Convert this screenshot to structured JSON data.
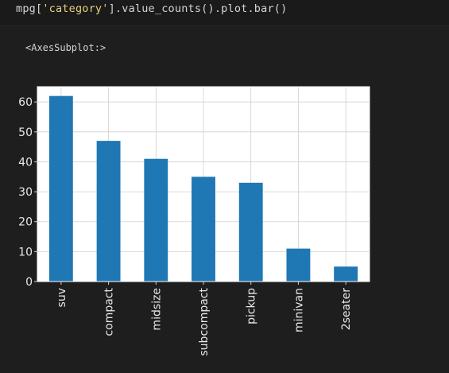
{
  "code_cell": {
    "prefix": "mpg[",
    "string_literal": "'category'",
    "suffix": "].value_counts().plot.bar()"
  },
  "output": {
    "repr_text": "<AxesSubplot:>"
  },
  "colors": {
    "background": "#1e1e1e",
    "bar": "#1f77b4",
    "plot_face": "#ffffff",
    "grid": "#d0d0d0",
    "string_literal": "#e6d37a"
  },
  "chart_data": {
    "type": "bar",
    "categories": [
      "suv",
      "compact",
      "midsize",
      "subcompact",
      "pickup",
      "minivan",
      "2seater"
    ],
    "values": [
      62,
      47,
      41,
      35,
      33,
      11,
      5
    ],
    "title": "",
    "xlabel": "",
    "ylabel": "",
    "ylim": [
      0,
      65.1
    ],
    "yticks": [
      0,
      10,
      20,
      30,
      40,
      50,
      60
    ],
    "grid": true,
    "legend": "none"
  }
}
